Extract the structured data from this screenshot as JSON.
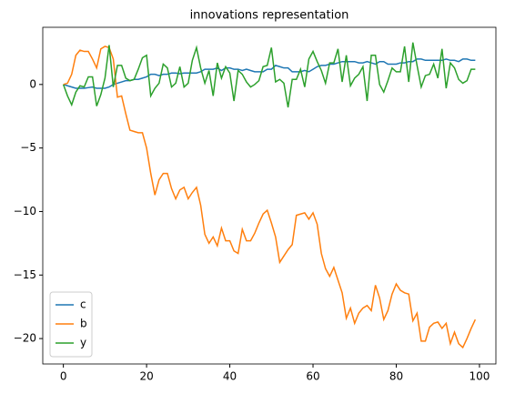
{
  "chart_data": {
    "type": "line",
    "title": "innovations representation",
    "x": [
      0,
      1,
      2,
      3,
      4,
      5,
      6,
      7,
      8,
      9,
      10,
      11,
      12,
      13,
      14,
      15,
      16,
      17,
      18,
      19,
      20,
      21,
      22,
      23,
      24,
      25,
      26,
      27,
      28,
      29,
      30,
      31,
      32,
      33,
      34,
      35,
      36,
      37,
      38,
      39,
      40,
      41,
      42,
      43,
      44,
      45,
      46,
      47,
      48,
      49,
      50,
      51,
      52,
      53,
      54,
      55,
      56,
      57,
      58,
      59,
      60,
      61,
      62,
      63,
      64,
      65,
      66,
      67,
      68,
      69,
      70,
      71,
      72,
      73,
      74,
      75,
      76,
      77,
      78,
      79,
      80,
      81,
      82,
      83,
      84,
      85,
      86,
      87,
      88,
      89,
      90,
      91,
      92,
      93,
      94,
      95,
      96,
      97,
      98,
      99
    ],
    "series": [
      {
        "name": "c",
        "color": "#1f77b4",
        "values": [
          0,
          -0.1,
          -0.2,
          -0.3,
          -0.3,
          -0.3,
          -0.25,
          -0.2,
          -0.3,
          -0.3,
          -0.3,
          -0.2,
          0,
          0.1,
          0.2,
          0.3,
          0.3,
          0.4,
          0.4,
          0.5,
          0.6,
          0.8,
          0.8,
          0.7,
          0.8,
          0.8,
          0.9,
          0.9,
          0.85,
          0.9,
          0.9,
          0.9,
          0.9,
          1.0,
          1.2,
          1.2,
          1.2,
          1.3,
          1.1,
          1.3,
          1.3,
          1.2,
          1.2,
          1.1,
          1.2,
          1.1,
          1.0,
          1.0,
          1.0,
          1.2,
          1.2,
          1.5,
          1.4,
          1.3,
          1.3,
          1.0,
          1.0,
          1.0,
          1.1,
          1.0,
          1.2,
          1.4,
          1.5,
          1.5,
          1.6,
          1.6,
          1.7,
          1.8,
          1.8,
          1.8,
          1.8,
          1.7,
          1.7,
          1.8,
          1.7,
          1.6,
          1.8,
          1.8,
          1.6,
          1.6,
          1.6,
          1.7,
          1.7,
          1.8,
          1.8,
          2.0,
          2.0,
          1.9,
          1.9,
          1.9,
          1.9,
          1.9,
          2.0,
          1.9,
          1.9,
          1.8,
          2.0,
          2.0,
          1.9,
          1.9
        ]
      },
      {
        "name": "b",
        "color": "#ff7f0e",
        "values": [
          0,
          0.1,
          0.8,
          2.3,
          2.7,
          2.6,
          2.6,
          2.0,
          1.3,
          2.8,
          3.0,
          2.9,
          2.0,
          -1.0,
          -0.9,
          -2.3,
          -3.6,
          -3.7,
          -3.8,
          -3.8,
          -5.0,
          -7.0,
          -8.7,
          -7.5,
          -7.0,
          -7.0,
          -8.2,
          -9.0,
          -8.3,
          -8.1,
          -9.0,
          -8.5,
          -8.1,
          -9.5,
          -11.8,
          -12.5,
          -12.0,
          -12.7,
          -11.3,
          -12.3,
          -12.3,
          -13.1,
          -13.3,
          -11.4,
          -12.3,
          -12.3,
          -11.7,
          -10.9,
          -10.2,
          -9.9,
          -10.9,
          -12.0,
          -14.0,
          -13.5,
          -13.0,
          -12.6,
          -10.3,
          -10.2,
          -10.1,
          -10.6,
          -10.1,
          -11.0,
          -13.3,
          -14.5,
          -15.1,
          -14.4,
          -15.4,
          -16.4,
          -18.4,
          -17.6,
          -18.8,
          -18.0,
          -17.6,
          -17.4,
          -17.8,
          -15.8,
          -16.8,
          -18.5,
          -17.8,
          -16.5,
          -15.7,
          -16.2,
          -16.4,
          -16.5,
          -18.6,
          -18.0,
          -20.2,
          -20.2,
          -19.1,
          -18.8,
          -18.7,
          -19.2,
          -18.8,
          -20.4,
          -19.5,
          -20.4,
          -20.7,
          -20.0,
          -19.2,
          -18.5
        ]
      },
      {
        "name": "y",
        "color": "#2ca02c",
        "values": [
          0,
          -0.9,
          -1.6,
          -0.6,
          -0.1,
          -0.2,
          0.6,
          0.6,
          -1.7,
          -0.8,
          0.5,
          3.1,
          -0.2,
          1.5,
          1.5,
          0.5,
          0.3,
          0.4,
          1.2,
          2.1,
          2.3,
          -0.9,
          -0.3,
          0.1,
          1.6,
          1.3,
          -0.2,
          0.1,
          1.4,
          -0.2,
          0.1,
          1.9,
          2.9,
          1.3,
          0.1,
          1.1,
          -0.9,
          1.7,
          0.5,
          1.4,
          0.9,
          -1.3,
          1.1,
          0.8,
          0.2,
          -0.2,
          0.0,
          0.3,
          1.4,
          1.5,
          2.9,
          0.2,
          0.4,
          0.1,
          -1.8,
          0.4,
          0.4,
          1.2,
          -0.2,
          2.0,
          2.6,
          1.8,
          1.1,
          0.1,
          1.7,
          1.7,
          2.8,
          0.2,
          2.3,
          -0.1,
          0.5,
          0.8,
          1.4,
          -1.3,
          2.3,
          2.3,
          0.0,
          -0.6,
          0.3,
          1.3,
          1.0,
          1.0,
          3.0,
          0.2,
          3.3,
          1.5,
          -0.2,
          0.7,
          0.8,
          1.6,
          0.5,
          2.8,
          -0.3,
          1.7,
          1.3,
          0.4,
          0.1,
          0.3,
          1.2,
          1.2
        ]
      }
    ],
    "xlim": [
      -4.95,
      103.95
    ],
    "xticks": [
      0,
      20,
      40,
      60,
      80,
      100
    ],
    "ylim": [
      -22.0,
      4.5
    ],
    "yticks": [
      {
        "value": -20,
        "label": "−20"
      },
      {
        "value": -15,
        "label": "−15"
      },
      {
        "value": -10,
        "label": "−10"
      },
      {
        "value": -5,
        "label": "−5"
      },
      0
    ],
    "legend": "lower left"
  }
}
